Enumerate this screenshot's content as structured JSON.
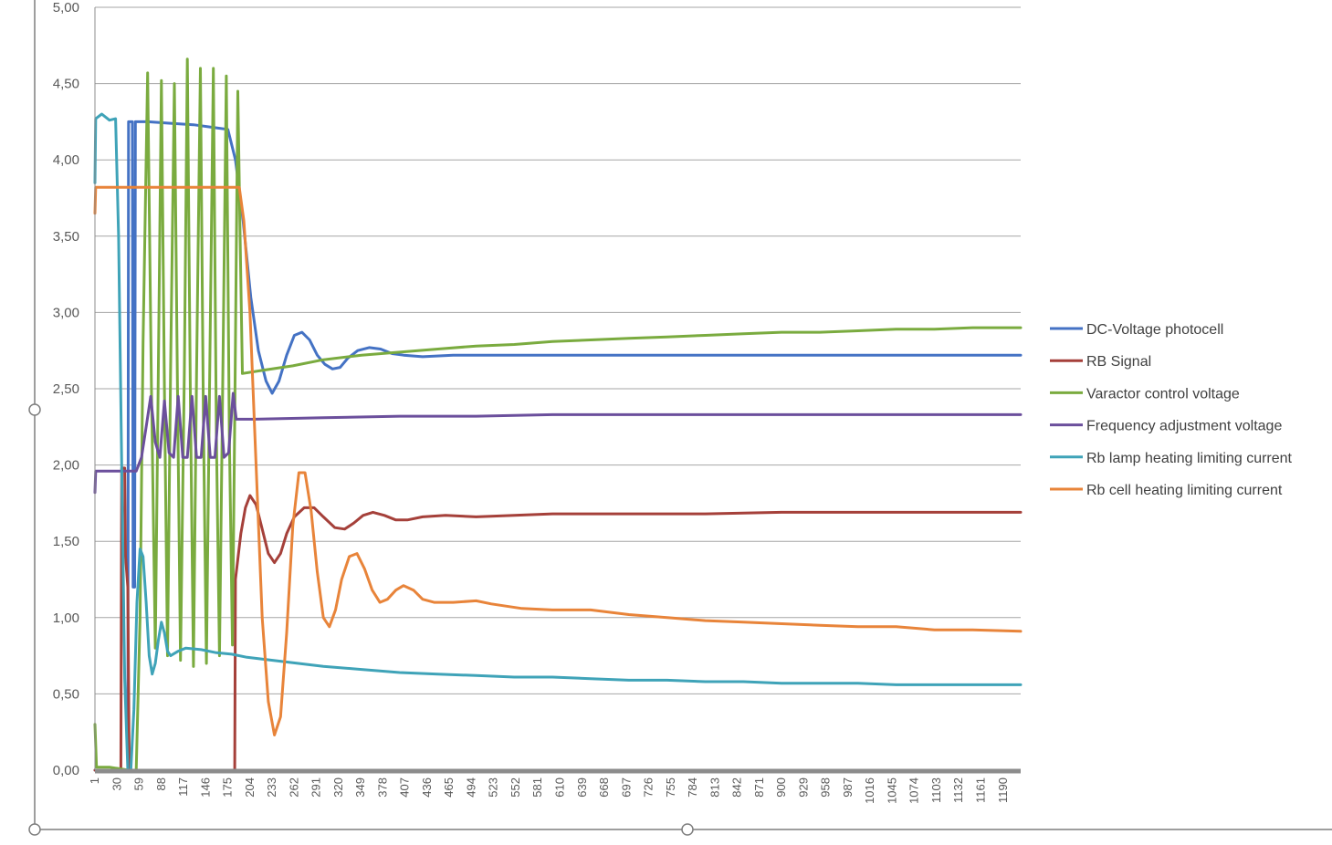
{
  "colors": {
    "background": "#ffffff",
    "gridline": "#a6a6a6",
    "axis": "#8c8c8c",
    "selection_frame": "#7f7f7f",
    "tick_text": "#595959",
    "legend_text": "#404040"
  },
  "chart_data": {
    "type": "line",
    "title": "",
    "xlabel": "",
    "ylabel": "",
    "ylim": [
      0,
      5
    ],
    "xlim": [
      1,
      1213
    ],
    "grid": "horizontal",
    "legend_position": "right",
    "y_ticks": [
      "0,00",
      "0,50",
      "1,00",
      "1,50",
      "2,00",
      "2,50",
      "3,00",
      "3,50",
      "4,00",
      "4,50",
      "5,00"
    ],
    "x_ticks": [
      1,
      30,
      59,
      88,
      117,
      146,
      175,
      204,
      233,
      262,
      291,
      320,
      349,
      378,
      407,
      436,
      465,
      494,
      523,
      552,
      581,
      610,
      639,
      668,
      697,
      726,
      755,
      784,
      813,
      842,
      871,
      900,
      929,
      958,
      987,
      1016,
      1045,
      1074,
      1103,
      1132,
      1161,
      1190
    ],
    "series": [
      {
        "name": "DC-Voltage photocell",
        "color": "#4472c4",
        "points": [
          [
            1,
            0
          ],
          [
            35,
            0
          ],
          [
            44,
            0
          ],
          [
            45,
            4.25
          ],
          [
            50,
            4.25
          ],
          [
            51,
            1.2
          ],
          [
            53,
            1.2
          ],
          [
            54,
            4.25
          ],
          [
            70,
            4.25
          ],
          [
            100,
            4.24
          ],
          [
            130,
            4.23
          ],
          [
            160,
            4.21
          ],
          [
            175,
            4.2
          ],
          [
            185,
            4.0
          ],
          [
            195,
            3.6
          ],
          [
            205,
            3.1
          ],
          [
            215,
            2.75
          ],
          [
            225,
            2.55
          ],
          [
            233,
            2.47
          ],
          [
            242,
            2.55
          ],
          [
            252,
            2.72
          ],
          [
            262,
            2.85
          ],
          [
            272,
            2.87
          ],
          [
            282,
            2.82
          ],
          [
            292,
            2.72
          ],
          [
            302,
            2.66
          ],
          [
            312,
            2.63
          ],
          [
            322,
            2.64
          ],
          [
            332,
            2.7
          ],
          [
            345,
            2.75
          ],
          [
            360,
            2.77
          ],
          [
            375,
            2.76
          ],
          [
            390,
            2.73
          ],
          [
            405,
            2.72
          ],
          [
            430,
            2.71
          ],
          [
            470,
            2.72
          ],
          [
            520,
            2.72
          ],
          [
            600,
            2.72
          ],
          [
            700,
            2.72
          ],
          [
            800,
            2.72
          ],
          [
            900,
            2.72
          ],
          [
            1000,
            2.72
          ],
          [
            1100,
            2.72
          ],
          [
            1213,
            2.72
          ]
        ]
      },
      {
        "name": "RB Signal",
        "color": "#a5403a",
        "points": [
          [
            1,
            0
          ],
          [
            35,
            0
          ],
          [
            36,
            1.98
          ],
          [
            40,
            1.98
          ],
          [
            41,
            1.4
          ],
          [
            44,
            1.2
          ],
          [
            46,
            0
          ],
          [
            60,
            0
          ],
          [
            100,
            0
          ],
          [
            150,
            0
          ],
          [
            184,
            0
          ],
          [
            185,
            1.25
          ],
          [
            192,
            1.55
          ],
          [
            198,
            1.72
          ],
          [
            204,
            1.8
          ],
          [
            212,
            1.74
          ],
          [
            220,
            1.58
          ],
          [
            228,
            1.42
          ],
          [
            236,
            1.36
          ],
          [
            244,
            1.42
          ],
          [
            252,
            1.55
          ],
          [
            262,
            1.66
          ],
          [
            275,
            1.72
          ],
          [
            288,
            1.72
          ],
          [
            300,
            1.66
          ],
          [
            315,
            1.59
          ],
          [
            328,
            1.58
          ],
          [
            340,
            1.62
          ],
          [
            352,
            1.67
          ],
          [
            365,
            1.69
          ],
          [
            380,
            1.67
          ],
          [
            395,
            1.64
          ],
          [
            410,
            1.64
          ],
          [
            430,
            1.66
          ],
          [
            460,
            1.67
          ],
          [
            500,
            1.66
          ],
          [
            550,
            1.67
          ],
          [
            600,
            1.68
          ],
          [
            700,
            1.68
          ],
          [
            800,
            1.68
          ],
          [
            900,
            1.69
          ],
          [
            1000,
            1.69
          ],
          [
            1100,
            1.69
          ],
          [
            1213,
            1.69
          ]
        ]
      },
      {
        "name": "Varactor control voltage",
        "color": "#7aab3f",
        "points": [
          [
            1,
            0.3
          ],
          [
            3,
            0.02
          ],
          [
            20,
            0.02
          ],
          [
            45,
            0
          ],
          [
            55,
            0
          ],
          [
            60,
            1.0
          ],
          [
            64,
            2.8
          ],
          [
            70,
            4.57
          ],
          [
            75,
            2.5
          ],
          [
            80,
            0.8
          ],
          [
            84,
            2.6
          ],
          [
            88,
            4.52
          ],
          [
            92,
            2.5
          ],
          [
            96,
            0.75
          ],
          [
            100,
            2.6
          ],
          [
            105,
            4.5
          ],
          [
            109,
            2.5
          ],
          [
            113,
            0.72
          ],
          [
            118,
            2.6
          ],
          [
            122,
            4.66
          ],
          [
            126,
            2.4
          ],
          [
            130,
            0.68
          ],
          [
            134,
            2.6
          ],
          [
            139,
            4.6
          ],
          [
            143,
            2.3
          ],
          [
            147,
            0.7
          ],
          [
            151,
            2.5
          ],
          [
            156,
            4.6
          ],
          [
            160,
            2.2
          ],
          [
            164,
            0.75
          ],
          [
            168,
            2.4
          ],
          [
            173,
            4.55
          ],
          [
            177,
            2.2
          ],
          [
            181,
            0.82
          ],
          [
            184,
            2.3
          ],
          [
            188,
            4.45
          ],
          [
            191,
            3.5
          ],
          [
            194,
            2.6
          ],
          [
            220,
            2.62
          ],
          [
            260,
            2.65
          ],
          [
            300,
            2.69
          ],
          [
            350,
            2.72
          ],
          [
            400,
            2.74
          ],
          [
            450,
            2.76
          ],
          [
            500,
            2.78
          ],
          [
            550,
            2.79
          ],
          [
            600,
            2.81
          ],
          [
            650,
            2.82
          ],
          [
            700,
            2.83
          ],
          [
            750,
            2.84
          ],
          [
            800,
            2.85
          ],
          [
            850,
            2.86
          ],
          [
            900,
            2.87
          ],
          [
            950,
            2.87
          ],
          [
            1000,
            2.88
          ],
          [
            1050,
            2.89
          ],
          [
            1100,
            2.89
          ],
          [
            1150,
            2.9
          ],
          [
            1213,
            2.9
          ]
        ]
      },
      {
        "name": "Frequency adjustment voltage",
        "color": "#6b4f9c",
        "points": [
          [
            1,
            1.82
          ],
          [
            2,
            1.96
          ],
          [
            55,
            1.96
          ],
          [
            62,
            2.05
          ],
          [
            68,
            2.25
          ],
          [
            74,
            2.45
          ],
          [
            80,
            2.15
          ],
          [
            86,
            2.05
          ],
          [
            92,
            2.42
          ],
          [
            98,
            2.08
          ],
          [
            104,
            2.05
          ],
          [
            110,
            2.45
          ],
          [
            116,
            2.05
          ],
          [
            122,
            2.05
          ],
          [
            128,
            2.45
          ],
          [
            134,
            2.05
          ],
          [
            140,
            2.05
          ],
          [
            146,
            2.45
          ],
          [
            152,
            2.05
          ],
          [
            158,
            2.05
          ],
          [
            164,
            2.45
          ],
          [
            170,
            2.05
          ],
          [
            176,
            2.08
          ],
          [
            182,
            2.47
          ],
          [
            186,
            2.3
          ],
          [
            210,
            2.3
          ],
          [
            300,
            2.31
          ],
          [
            400,
            2.32
          ],
          [
            500,
            2.32
          ],
          [
            600,
            2.33
          ],
          [
            700,
            2.33
          ],
          [
            800,
            2.33
          ],
          [
            900,
            2.33
          ],
          [
            1000,
            2.33
          ],
          [
            1100,
            2.33
          ],
          [
            1213,
            2.33
          ]
        ]
      },
      {
        "name": "Rb lamp heating limiting current",
        "color": "#3fa3b8",
        "points": [
          [
            1,
            3.85
          ],
          [
            2,
            4.27
          ],
          [
            10,
            4.3
          ],
          [
            20,
            4.26
          ],
          [
            28,
            4.27
          ],
          [
            32,
            3.5
          ],
          [
            36,
            2.0
          ],
          [
            40,
            0.6
          ],
          [
            44,
            0.0
          ],
          [
            48,
            0.0
          ],
          [
            52,
            0.4
          ],
          [
            56,
            1.1
          ],
          [
            60,
            1.45
          ],
          [
            64,
            1.4
          ],
          [
            68,
            1.1
          ],
          [
            72,
            0.75
          ],
          [
            76,
            0.63
          ],
          [
            80,
            0.7
          ],
          [
            84,
            0.85
          ],
          [
            88,
            0.97
          ],
          [
            92,
            0.9
          ],
          [
            96,
            0.78
          ],
          [
            100,
            0.75
          ],
          [
            110,
            0.78
          ],
          [
            120,
            0.8
          ],
          [
            140,
            0.79
          ],
          [
            160,
            0.77
          ],
          [
            180,
            0.76
          ],
          [
            200,
            0.74
          ],
          [
            250,
            0.71
          ],
          [
            300,
            0.68
          ],
          [
            350,
            0.66
          ],
          [
            400,
            0.64
          ],
          [
            450,
            0.63
          ],
          [
            500,
            0.62
          ],
          [
            550,
            0.61
          ],
          [
            600,
            0.61
          ],
          [
            650,
            0.6
          ],
          [
            700,
            0.59
          ],
          [
            750,
            0.59
          ],
          [
            800,
            0.58
          ],
          [
            850,
            0.58
          ],
          [
            900,
            0.57
          ],
          [
            950,
            0.57
          ],
          [
            1000,
            0.57
          ],
          [
            1050,
            0.56
          ],
          [
            1100,
            0.56
          ],
          [
            1150,
            0.56
          ],
          [
            1213,
            0.56
          ]
        ]
      },
      {
        "name": "Rb cell heating limiting current",
        "color": "#e8843a",
        "points": [
          [
            1,
            3.65
          ],
          [
            2,
            3.82
          ],
          [
            50,
            3.82
          ],
          [
            100,
            3.82
          ],
          [
            150,
            3.82
          ],
          [
            190,
            3.82
          ],
          [
            196,
            3.6
          ],
          [
            204,
            3.0
          ],
          [
            212,
            2.0
          ],
          [
            220,
            1.0
          ],
          [
            228,
            0.45
          ],
          [
            236,
            0.23
          ],
          [
            244,
            0.35
          ],
          [
            252,
            0.9
          ],
          [
            260,
            1.6
          ],
          [
            268,
            1.95
          ],
          [
            276,
            1.95
          ],
          [
            284,
            1.7
          ],
          [
            292,
            1.3
          ],
          [
            300,
            1.0
          ],
          [
            308,
            0.94
          ],
          [
            316,
            1.05
          ],
          [
            324,
            1.25
          ],
          [
            334,
            1.4
          ],
          [
            344,
            1.42
          ],
          [
            354,
            1.32
          ],
          [
            364,
            1.18
          ],
          [
            374,
            1.1
          ],
          [
            384,
            1.12
          ],
          [
            395,
            1.18
          ],
          [
            405,
            1.21
          ],
          [
            418,
            1.18
          ],
          [
            430,
            1.12
          ],
          [
            445,
            1.1
          ],
          [
            470,
            1.1
          ],
          [
            500,
            1.11
          ],
          [
            520,
            1.09
          ],
          [
            560,
            1.06
          ],
          [
            600,
            1.05
          ],
          [
            650,
            1.05
          ],
          [
            700,
            1.02
          ],
          [
            750,
            1.0
          ],
          [
            800,
            0.98
          ],
          [
            850,
            0.97
          ],
          [
            900,
            0.96
          ],
          [
            950,
            0.95
          ],
          [
            1000,
            0.94
          ],
          [
            1050,
            0.94
          ],
          [
            1100,
            0.92
          ],
          [
            1150,
            0.92
          ],
          [
            1213,
            0.91
          ]
        ]
      }
    ]
  }
}
